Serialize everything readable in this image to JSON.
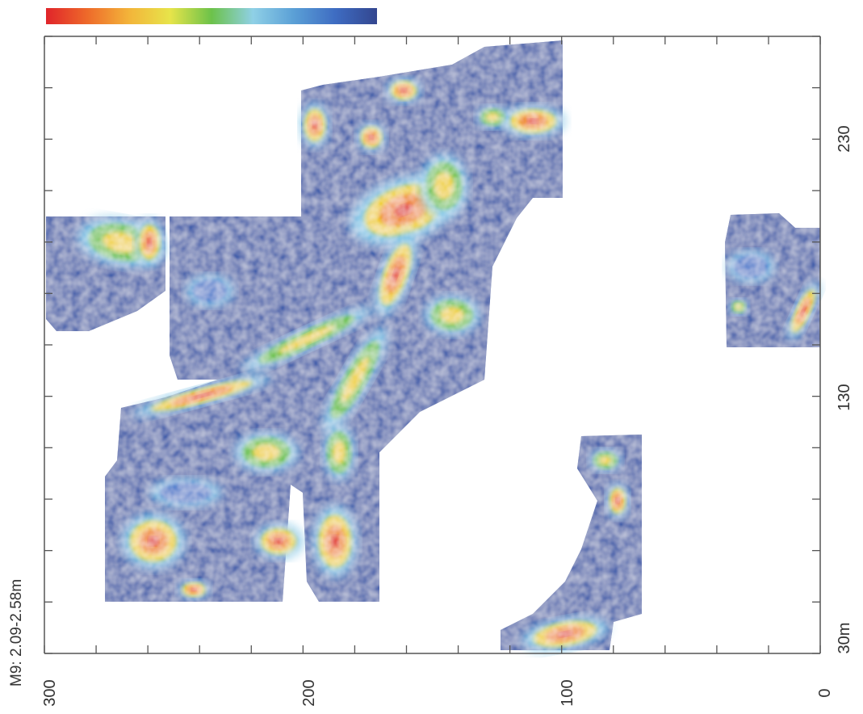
{
  "title": "M9: 2.09-2.58m",
  "colorbar": {
    "colors": [
      "#e0242a",
      "#ee6a2a",
      "#f3b43a",
      "#e7e44a",
      "#6cc24a",
      "#8fd0e6",
      "#5a9fd6",
      "#3e6cc2",
      "#33468f"
    ]
  },
  "axes": {
    "x_ticks": [
      "300",
      "200",
      "100",
      "0"
    ],
    "y_ticks": [
      "230",
      "130",
      "30m"
    ]
  },
  "colors": {
    "low": "#33468f",
    "mid_low": "#4e7bcc",
    "mid": "#7fc8e8",
    "green": "#6cc24a",
    "yellow": "#f0d23a",
    "orange": "#f08a2c",
    "high": "#e02a2a"
  }
}
